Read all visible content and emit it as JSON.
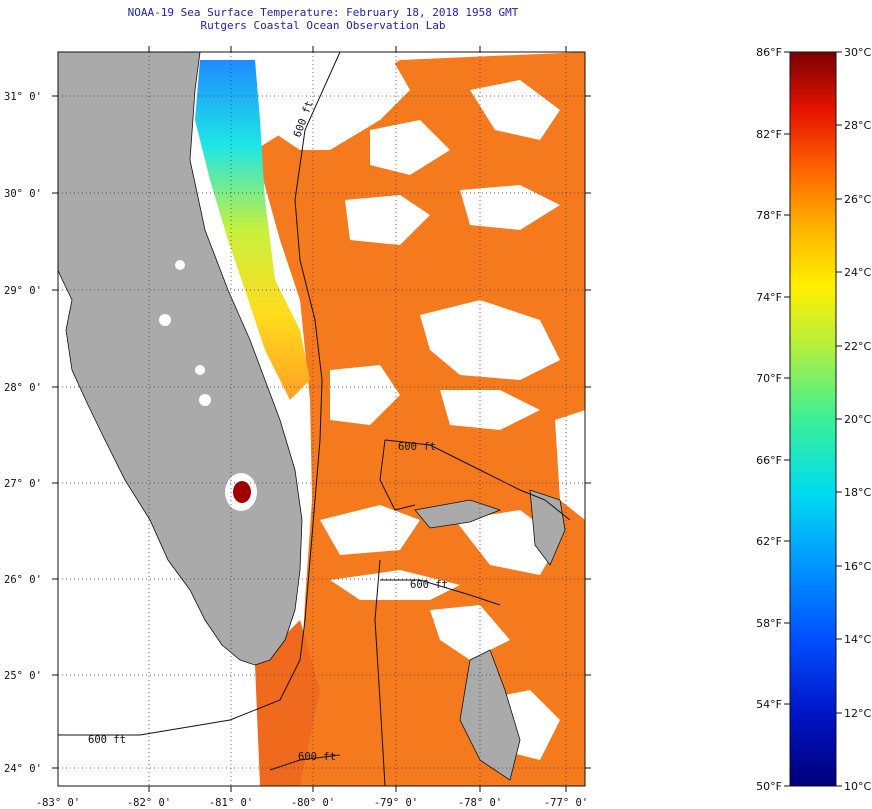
{
  "header": {
    "title": "NOAA-19 Sea Surface Temperature:  February 18, 2018 1958 GMT",
    "subtitle": "Rutgers Coastal Ocean Observation Lab"
  },
  "map": {
    "lat_labels": [
      "31° 0'",
      "30° 0'",
      "29° 0'",
      "28° 0'",
      "27° 0'",
      "26° 0'",
      "25° 0'",
      "24° 0'"
    ],
    "lon_labels": [
      "-83° 0'",
      "-82° 0'",
      "-81° 0'",
      "-80° 0'",
      "-79° 0'",
      "-78° 0'",
      "-77° 0'"
    ],
    "contour_labels": [
      "600 ft",
      "600 ft",
      "600 ft",
      "600 ft",
      "600 ft"
    ],
    "colors": {
      "land": "#aaaaaa",
      "cloud": "#ffffff",
      "warm_water": "#f57a1e"
    }
  },
  "colorbar": {
    "fahrenheit_labels": [
      "86°F",
      "82°F",
      "78°F",
      "74°F",
      "70°F",
      "66°F",
      "62°F",
      "58°F",
      "54°F",
      "50°F"
    ],
    "celsius_labels": [
      "30°C",
      "28°C",
      "26°C",
      "24°C",
      "22°C",
      "20°C",
      "18°C",
      "16°C",
      "14°C",
      "12°C",
      "10°C"
    ]
  }
}
